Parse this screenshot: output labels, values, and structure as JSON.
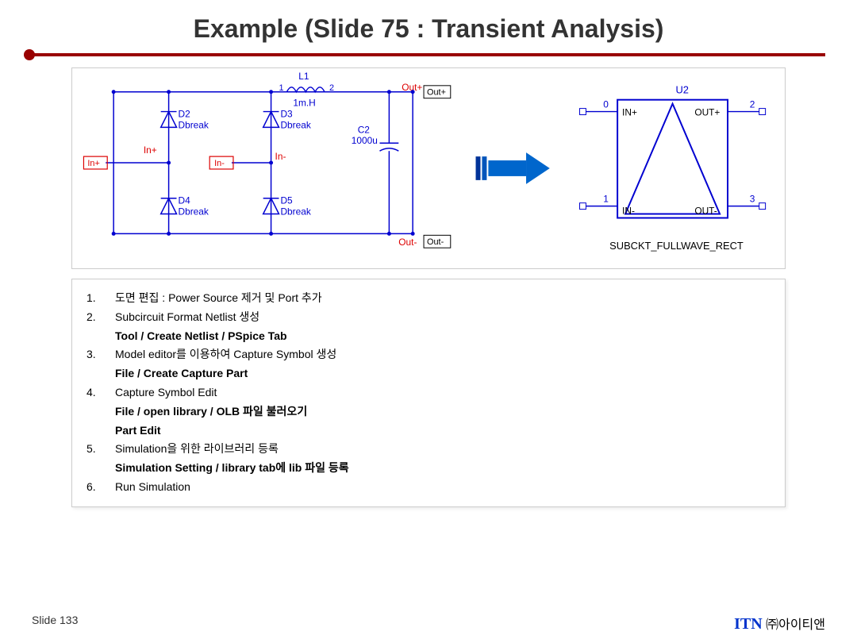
{
  "title": "Example (Slide 75 : Transient Analysis)",
  "footer": {
    "left": "Slide 133",
    "right_itn": "ITN",
    "right_kor": " ㈜아이티앤"
  },
  "diagram": {
    "labels": {
      "L1": "L1",
      "L1_val": "1m.H",
      "L1_pin1": "1",
      "L1_pin2": "2",
      "D2": "D2",
      "D2b": "Dbreak",
      "D3": "D3",
      "D3b": "Dbreak",
      "D4": "D4",
      "D4b": "Dbreak",
      "D5": "D5",
      "D5b": "Dbreak",
      "C2": "C2",
      "C2v": "1000u",
      "InPlus": "In+",
      "InMinus": "In-",
      "InPlus2": "In+",
      "InMinus2": "In-",
      "OutPlus": "Out+",
      "OutPlus2": "Out+",
      "OutMinus": "Out-",
      "OutMinus2": "Out-",
      "U2": "U2",
      "pin0": "0",
      "pin1": "1",
      "pin2": "2",
      "pin3": "3",
      "INp": "IN+",
      "INm": "IN-",
      "OUTp": "OUT+",
      "OUTm": "OUT-",
      "SUBCKT": "SUBCKT_FULLWAVE_RECT"
    },
    "colors": {
      "wire": "#0000d0",
      "port": "#dd0000",
      "text_blue": "#0000d0",
      "text_red": "#dd0000",
      "arrow_body": "#0066cc",
      "arrow_dark": "#003399",
      "black": "#000000"
    }
  },
  "steps": [
    {
      "n": "1.",
      "t": "도면 편집 : Power Source 제거 및 Port 추가"
    },
    {
      "n": "2.",
      "t": "Subcircuit Format Netlist 생성"
    },
    {
      "sub": "Tool / Create Netlist / PSpice Tab"
    },
    {
      "n": "3.",
      "t": "Model editor를 이용하여 Capture Symbol 생성"
    },
    {
      "sub": "File / Create Capture Part"
    },
    {
      "n": "4.",
      "t": "Capture Symbol Edit"
    },
    {
      "sub": "File / open library / OLB 파일 불러오기"
    },
    {
      "sub": "Part Edit"
    },
    {
      "n": "5.",
      "t": "Simulation을 위한 라이브러리 등록"
    },
    {
      "sub": "Simulation Setting / library tab에 lib 파일 등록"
    },
    {
      "n": "6.",
      "t": "Run Simulation"
    }
  ]
}
